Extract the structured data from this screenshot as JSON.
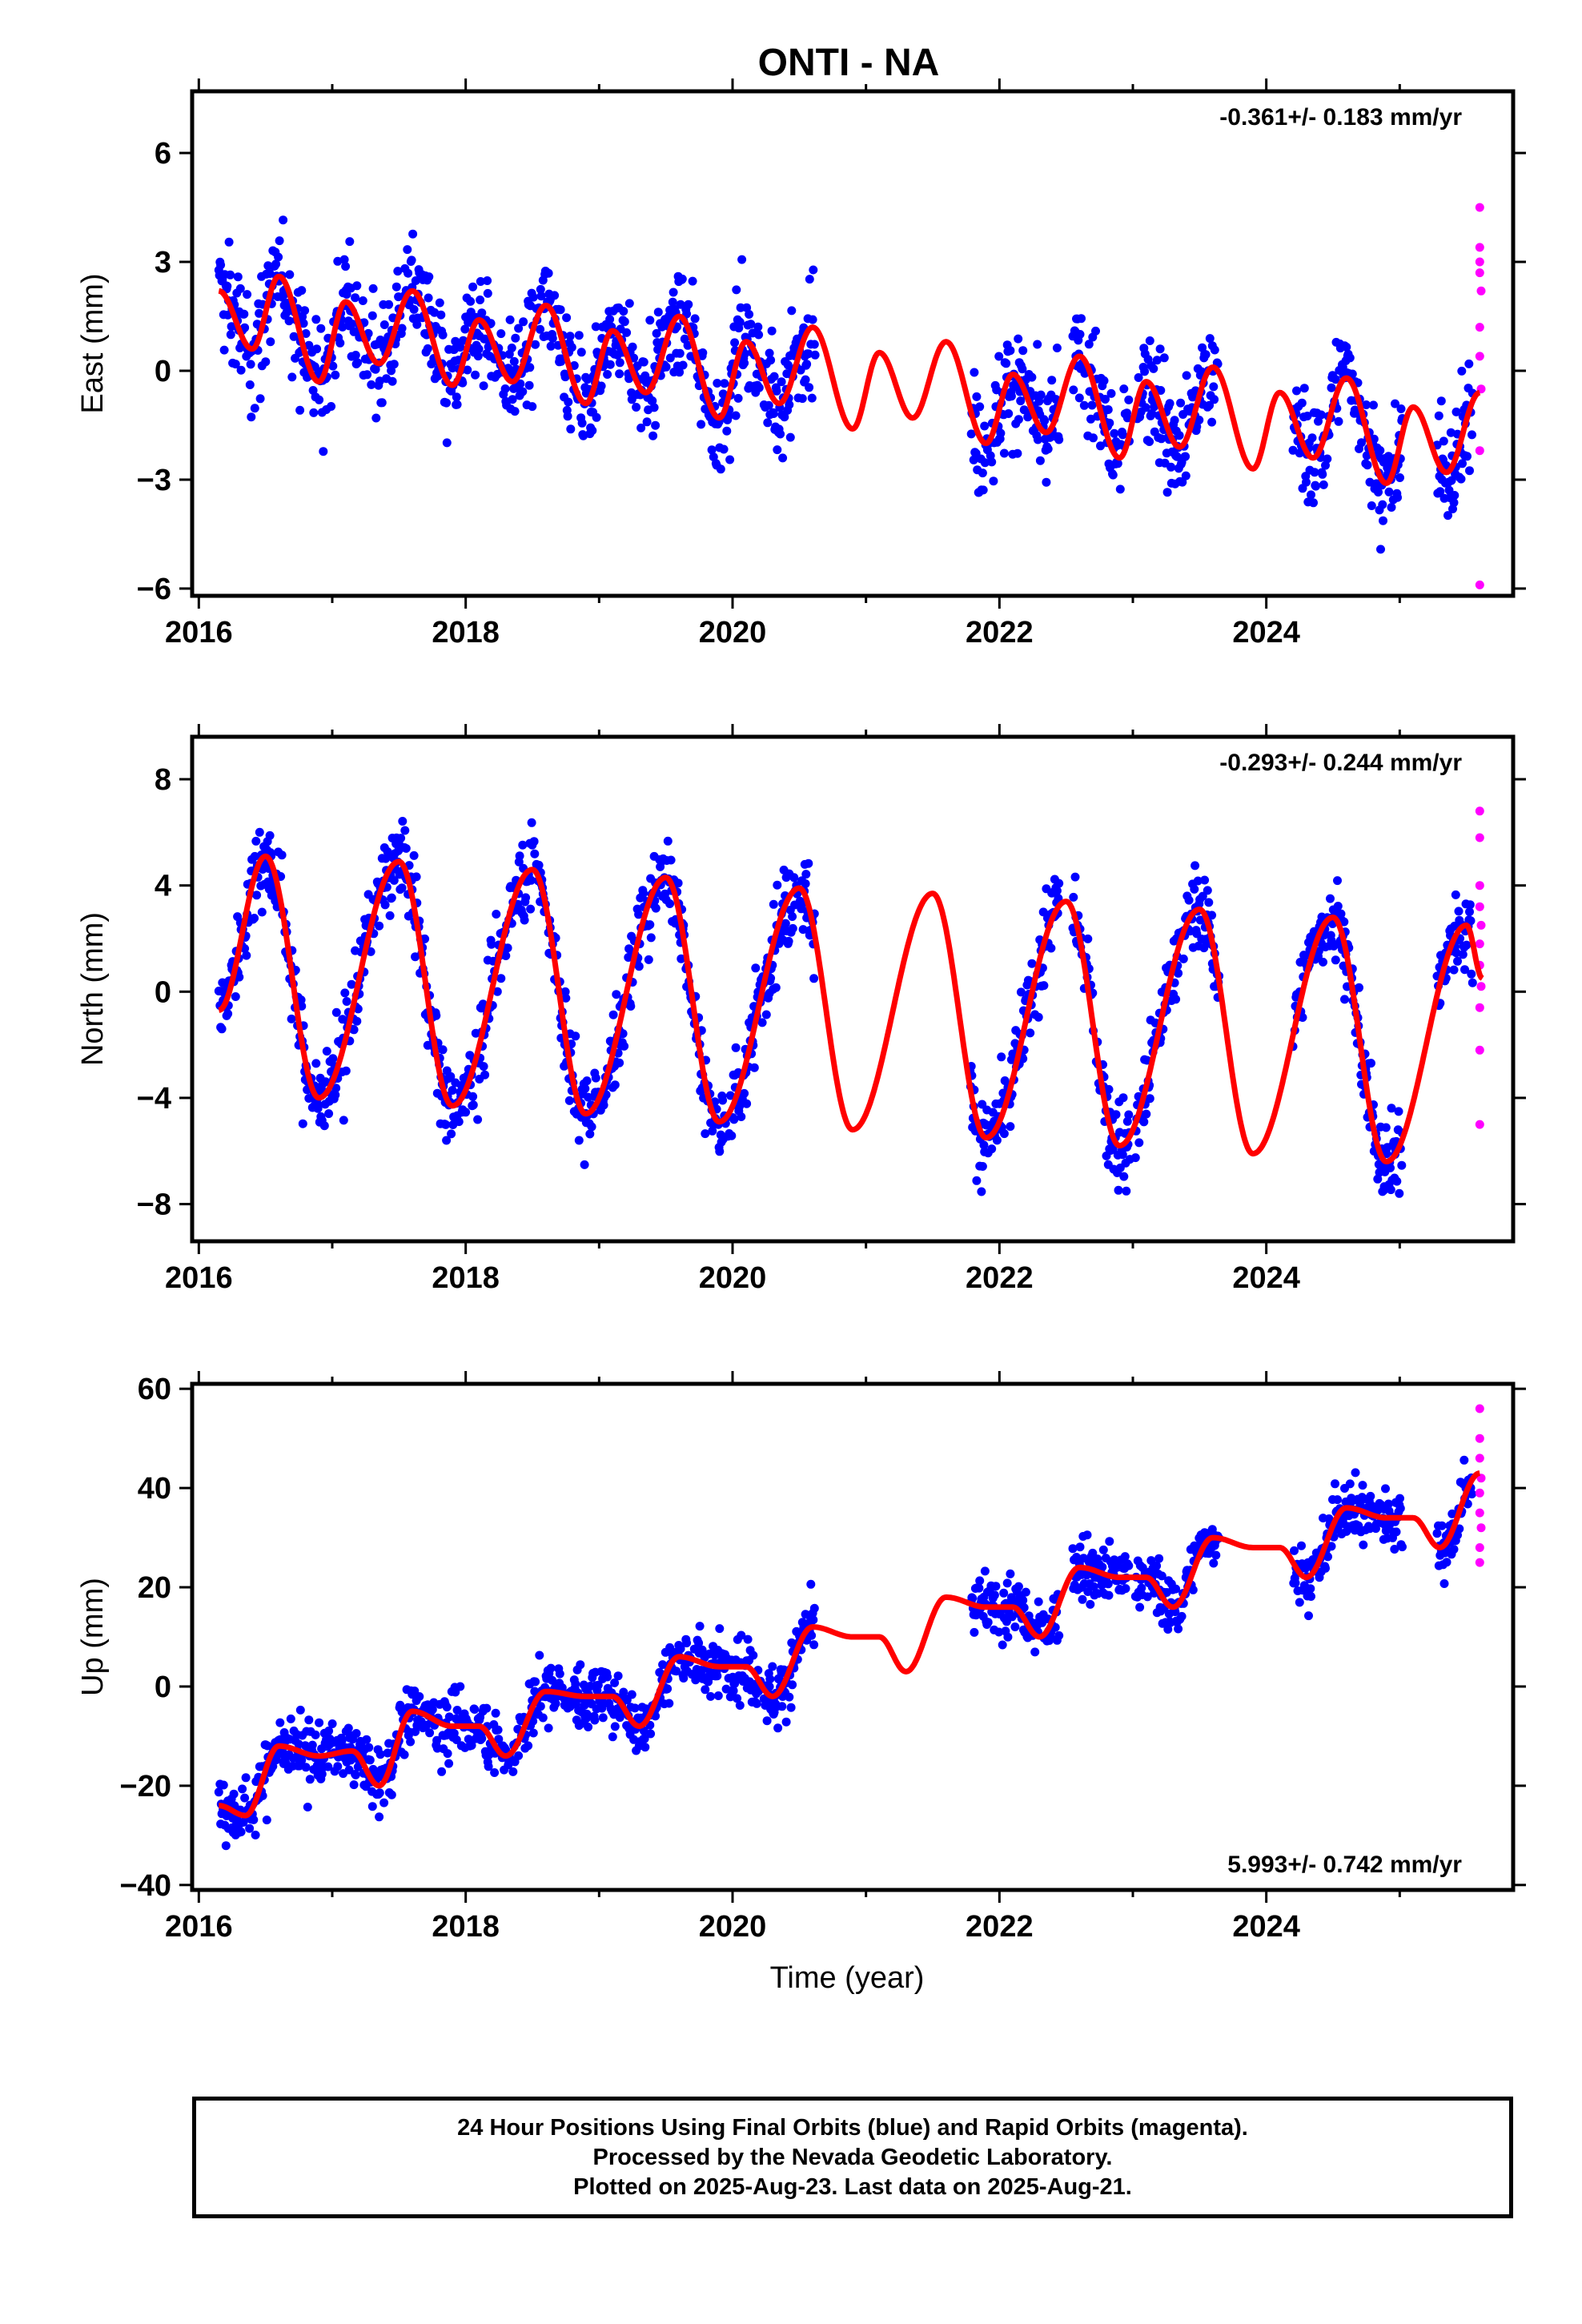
{
  "figure_title": "ONTI - NA",
  "x_axis_title": "Time (year)",
  "caption_lines": [
    "24 Hour Positions Using Final Orbits (blue) and Rapid Orbits (magenta).",
    "Processed by the Nevada Geodetic Laboratory.",
    "Plotted on 2025-Aug-23. Last data on 2025-Aug-21."
  ],
  "colors": {
    "final_orbits": "#0000ff",
    "rapid_orbits": "#ff00ff",
    "model_fit": "#ff0000",
    "axes": "#000000"
  },
  "chart_data": [
    {
      "type": "scatter",
      "component": "east",
      "ylabel": "East (mm)",
      "rate_label": "-0.361+/- 0.183 mm/yr",
      "xlim": [
        2015.95,
        2025.85
      ],
      "ylim": [
        -6.2,
        7.7
      ],
      "xticks": [
        2016,
        2018,
        2020,
        2022,
        2024
      ],
      "yticks": [
        -6,
        -3,
        0,
        3,
        6
      ],
      "rate": -0.361,
      "annual_amplitude": 1.35,
      "fit_curve_knots": [
        [
          2016.15,
          2.2
        ],
        [
          2016.4,
          0.6
        ],
        [
          2016.6,
          2.6
        ],
        [
          2016.9,
          -0.3
        ],
        [
          2017.1,
          1.9
        ],
        [
          2017.35,
          0.2
        ],
        [
          2017.6,
          2.2
        ],
        [
          2017.9,
          -0.4
        ],
        [
          2018.1,
          1.4
        ],
        [
          2018.35,
          -0.3
        ],
        [
          2018.6,
          1.8
        ],
        [
          2018.9,
          -0.9
        ],
        [
          2019.1,
          1.1
        ],
        [
          2019.35,
          -0.6
        ],
        [
          2019.6,
          1.5
        ],
        [
          2019.9,
          -1.3
        ],
        [
          2020.1,
          0.8
        ],
        [
          2020.35,
          -0.9
        ],
        [
          2020.6,
          1.2
        ],
        [
          2020.9,
          -1.6
        ],
        [
          2021.1,
          0.5
        ],
        [
          2021.35,
          -1.3
        ],
        [
          2021.6,
          0.8
        ],
        [
          2021.9,
          -2.0
        ],
        [
          2022.1,
          -0.1
        ],
        [
          2022.35,
          -1.7
        ],
        [
          2022.6,
          0.4
        ],
        [
          2022.9,
          -2.4
        ],
        [
          2023.1,
          -0.3
        ],
        [
          2023.35,
          -2.1
        ],
        [
          2023.6,
          0.1
        ],
        [
          2023.9,
          -2.7
        ],
        [
          2024.1,
          -0.6
        ],
        [
          2024.35,
          -2.4
        ],
        [
          2024.6,
          -0.2
        ],
        [
          2024.9,
          -3.1
        ],
        [
          2025.1,
          -1.0
        ],
        [
          2025.35,
          -2.8
        ],
        [
          2025.6,
          -0.6
        ]
      ],
      "final_orbit_segments": [
        [
          2016.15,
          2020.62
        ],
        [
          2021.78,
          2022.45
        ],
        [
          2022.55,
          2022.98
        ],
        [
          2023.02,
          2023.65
        ],
        [
          2024.2,
          2025.02
        ],
        [
          2025.28,
          2025.55
        ]
      ],
      "rapid_orbit_points": [
        {
          "x": 2025.6,
          "y": 4.5
        },
        {
          "x": 2025.6,
          "y": 3.4
        },
        {
          "x": 2025.6,
          "y": 3.0
        },
        {
          "x": 2025.6,
          "y": 2.7
        },
        {
          "x": 2025.61,
          "y": 2.2
        },
        {
          "x": 2025.6,
          "y": 1.2
        },
        {
          "x": 2025.6,
          "y": 0.4
        },
        {
          "x": 2025.61,
          "y": -0.5
        },
        {
          "x": 2025.6,
          "y": -2.2
        },
        {
          "x": 2025.6,
          "y": -5.9
        }
      ]
    },
    {
      "type": "scatter",
      "component": "north",
      "ylabel": "North (mm)",
      "rate_label": "-0.293+/- 0.244 mm/yr",
      "xlim": [
        2015.95,
        2025.85
      ],
      "ylim": [
        -9.4,
        9.6
      ],
      "xticks": [
        2016,
        2018,
        2020,
        2022,
        2024
      ],
      "yticks": [
        -8,
        -4,
        0,
        4,
        8
      ],
      "rate": -0.293,
      "annual_amplitude": 4.6,
      "fit_curve_knots": [
        [
          2016.15,
          -0.7
        ],
        [
          2016.5,
          5.1
        ],
        [
          2016.9,
          -4.0
        ],
        [
          2017.5,
          4.9
        ],
        [
          2017.9,
          -4.3
        ],
        [
          2018.5,
          4.6
        ],
        [
          2018.9,
          -4.6
        ],
        [
          2019.5,
          4.3
        ],
        [
          2019.9,
          -4.9
        ],
        [
          2020.5,
          3.9
        ],
        [
          2020.9,
          -5.2
        ],
        [
          2021.5,
          3.7
        ],
        [
          2021.9,
          -5.5
        ],
        [
          2022.5,
          3.4
        ],
        [
          2022.9,
          -5.8
        ],
        [
          2023.5,
          3.1
        ],
        [
          2023.9,
          -6.1
        ],
        [
          2024.5,
          2.8
        ],
        [
          2024.9,
          -6.4
        ],
        [
          2025.5,
          2.5
        ],
        [
          2025.62,
          0.5
        ]
      ],
      "final_orbit_segments": [
        [
          2016.15,
          2020.62
        ],
        [
          2021.78,
          2022.45
        ],
        [
          2022.55,
          2022.98
        ],
        [
          2023.02,
          2023.65
        ],
        [
          2024.2,
          2025.02
        ],
        [
          2025.28,
          2025.55
        ]
      ],
      "rapid_orbit_points": [
        {
          "x": 2025.6,
          "y": 6.8
        },
        {
          "x": 2025.6,
          "y": 5.8
        },
        {
          "x": 2025.6,
          "y": 4.0
        },
        {
          "x": 2025.6,
          "y": 3.2
        },
        {
          "x": 2025.61,
          "y": 2.5
        },
        {
          "x": 2025.6,
          "y": 1.8
        },
        {
          "x": 2025.6,
          "y": 1.0
        },
        {
          "x": 2025.61,
          "y": 0.2
        },
        {
          "x": 2025.6,
          "y": -0.6
        },
        {
          "x": 2025.6,
          "y": -2.2
        },
        {
          "x": 2025.6,
          "y": -5.0
        }
      ]
    },
    {
      "type": "scatter",
      "component": "up",
      "ylabel": "Up (mm)",
      "rate_label": "5.993+/- 0.742 mm/yr",
      "xlim": [
        2015.95,
        2025.85
      ],
      "ylim": [
        -41,
        61
      ],
      "xticks": [
        2016,
        2018,
        2020,
        2022,
        2024
      ],
      "yticks": [
        -40,
        -20,
        0,
        20,
        40,
        60
      ],
      "rate": 5.993,
      "annual_amplitude": 3.5,
      "fit_curve_knots": [
        [
          2016.15,
          -24
        ],
        [
          2016.35,
          -26
        ],
        [
          2016.6,
          -12
        ],
        [
          2016.9,
          -14
        ],
        [
          2017.15,
          -13
        ],
        [
          2017.35,
          -20
        ],
        [
          2017.6,
          -5
        ],
        [
          2017.9,
          -8
        ],
        [
          2018.1,
          -8
        ],
        [
          2018.3,
          -14
        ],
        [
          2018.6,
          -1
        ],
        [
          2018.9,
          -2
        ],
        [
          2019.1,
          -2
        ],
        [
          2019.3,
          -8
        ],
        [
          2019.6,
          6
        ],
        [
          2019.9,
          4
        ],
        [
          2020.1,
          4
        ],
        [
          2020.3,
          -2
        ],
        [
          2020.6,
          12
        ],
        [
          2020.9,
          10
        ],
        [
          2021.1,
          10
        ],
        [
          2021.3,
          3
        ],
        [
          2021.6,
          18
        ],
        [
          2021.9,
          16
        ],
        [
          2022.1,
          16
        ],
        [
          2022.3,
          10
        ],
        [
          2022.6,
          24
        ],
        [
          2022.9,
          22
        ],
        [
          2023.1,
          22
        ],
        [
          2023.3,
          16
        ],
        [
          2023.6,
          30
        ],
        [
          2023.9,
          28
        ],
        [
          2024.1,
          28
        ],
        [
          2024.3,
          22
        ],
        [
          2024.6,
          36
        ],
        [
          2024.9,
          34
        ],
        [
          2025.1,
          34
        ],
        [
          2025.3,
          28
        ],
        [
          2025.6,
          43
        ]
      ],
      "final_orbit_segments": [
        [
          2016.15,
          2020.62
        ],
        [
          2021.78,
          2022.45
        ],
        [
          2022.55,
          2022.98
        ],
        [
          2023.02,
          2023.65
        ],
        [
          2024.2,
          2025.02
        ],
        [
          2025.28,
          2025.55
        ]
      ],
      "rapid_orbit_points": [
        {
          "x": 2025.6,
          "y": 56
        },
        {
          "x": 2025.6,
          "y": 50
        },
        {
          "x": 2025.6,
          "y": 46
        },
        {
          "x": 2025.61,
          "y": 42
        },
        {
          "x": 2025.6,
          "y": 39
        },
        {
          "x": 2025.6,
          "y": 35
        },
        {
          "x": 2025.61,
          "y": 32
        },
        {
          "x": 2025.6,
          "y": 28
        },
        {
          "x": 2025.6,
          "y": 25
        }
      ]
    }
  ]
}
